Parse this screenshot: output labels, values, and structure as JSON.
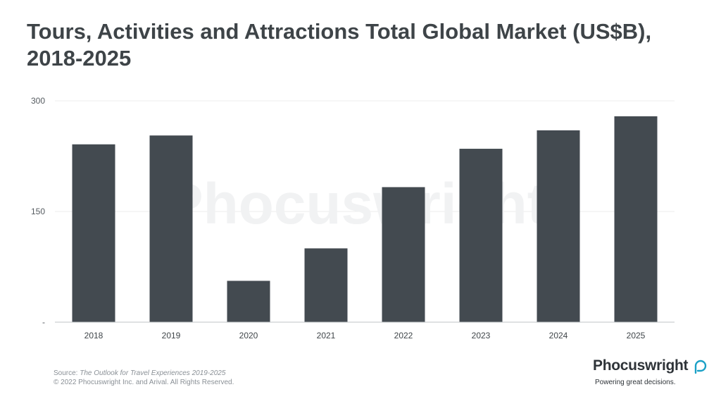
{
  "title": "Tours, Activities and Attractions Total Global Market (US$B), 2018-2025",
  "watermark": "Phocuswright",
  "chart_data": {
    "type": "bar",
    "categories": [
      "2018",
      "2019",
      "2020",
      "2021",
      "2022",
      "2023",
      "2024",
      "2025"
    ],
    "values": [
      241,
      253,
      56,
      100,
      183,
      235,
      260,
      279
    ],
    "ylim": [
      0,
      300
    ],
    "yticks": [
      {
        "value": 0,
        "label": "-"
      },
      {
        "value": 150,
        "label": "150"
      },
      {
        "value": 300,
        "label": "300"
      }
    ],
    "grid": true,
    "bar_color": "#434a50"
  },
  "source": {
    "prefix": "Source: ",
    "title": "The Outlook for Travel Experiences 2019-2025",
    "copyright": "© 2022 Phocuswright Inc. and Arival. All Rights Reserved."
  },
  "brand": {
    "name": "Phocuswright",
    "tagline": "Powering great decisions.",
    "accent_color": "#1aa0c6"
  }
}
